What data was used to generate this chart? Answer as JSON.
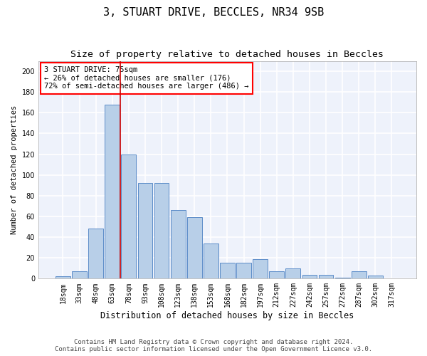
{
  "title1": "3, STUART DRIVE, BECCLES, NR34 9SB",
  "title2": "Size of property relative to detached houses in Beccles",
  "xlabel": "Distribution of detached houses by size in Beccles",
  "ylabel": "Number of detached properties",
  "categories": [
    "18sqm",
    "33sqm",
    "48sqm",
    "63sqm",
    "78sqm",
    "93sqm",
    "108sqm",
    "123sqm",
    "138sqm",
    "153sqm",
    "168sqm",
    "182sqm",
    "197sqm",
    "212sqm",
    "227sqm",
    "242sqm",
    "257sqm",
    "272sqm",
    "287sqm",
    "302sqm",
    "317sqm"
  ],
  "values": [
    2,
    7,
    48,
    168,
    120,
    92,
    92,
    66,
    59,
    34,
    15,
    15,
    19,
    7,
    10,
    4,
    4,
    1,
    7,
    3,
    0
  ],
  "bar_color": "#b8cfe8",
  "bar_edge_color": "#5b8cc8",
  "vline_color": "#cc0000",
  "vline_x": 3.5,
  "property_label": "3 STUART DRIVE: 75sqm",
  "annotation_line1": "← 26% of detached houses are smaller (176)",
  "annotation_line2": "72% of semi-detached houses are larger (486) →",
  "footer1": "Contains HM Land Registry data © Crown copyright and database right 2024.",
  "footer2": "Contains public sector information licensed under the Open Government Licence v3.0.",
  "ylim": [
    0,
    210
  ],
  "yticks": [
    0,
    20,
    40,
    60,
    80,
    100,
    120,
    140,
    160,
    180,
    200
  ],
  "background_color": "#eef2fb",
  "grid_color": "#ffffff",
  "title1_fontsize": 11,
  "title2_fontsize": 9.5,
  "xlabel_fontsize": 8.5,
  "ylabel_fontsize": 7.5,
  "tick_fontsize": 7,
  "footer_fontsize": 6.5,
  "annotation_fontsize": 7.5
}
